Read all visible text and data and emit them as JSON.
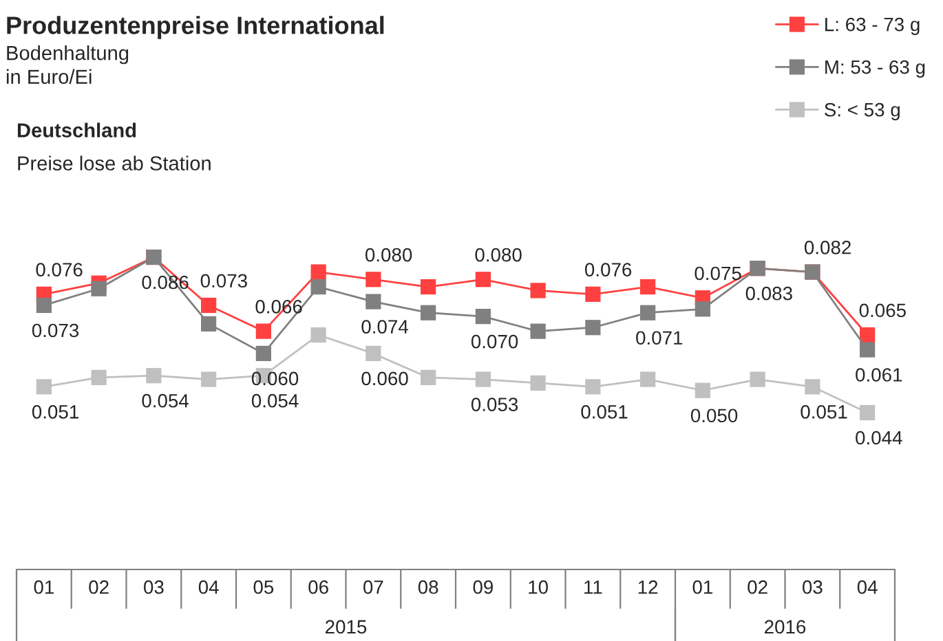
{
  "chart_data": {
    "type": "line",
    "title": "Produzentenpreise International",
    "subtitle": "Bodenhaltung\nin Euro/Ei",
    "annotations": [
      "Deutschland",
      "Preise lose ab Station",
      "2015",
      "2016"
    ],
    "categories": [
      "01",
      "02",
      "03",
      "04",
      "05",
      "06",
      "07",
      "08",
      "09",
      "10",
      "11",
      "12",
      "01",
      "02",
      "03",
      "04"
    ],
    "tick_labels": "x",
    "series": [
      {
        "name": "L: 63 - 73 g",
        "color": "#ff4040",
        "values": [
          0.076,
          0.079,
          0.086,
          0.073,
          0.066,
          0.082,
          0.08,
          0.078,
          0.08,
          0.077,
          0.076,
          0.078,
          0.075,
          0.083,
          0.082,
          0.065
        ],
        "value_labels": [
          "0.076",
          null,
          null,
          "0.073",
          "0.066",
          null,
          "0.080",
          null,
          "0.080",
          null,
          "0.076",
          null,
          "0.075",
          null,
          "0.082",
          "0.065"
        ]
      },
      {
        "name": "M: 53 - 63 g",
        "color": "#808080",
        "values": [
          0.073,
          0.0775,
          0.086,
          0.068,
          0.06,
          0.078,
          0.074,
          0.071,
          0.07,
          0.066,
          0.067,
          0.071,
          0.072,
          0.083,
          0.082,
          0.061
        ],
        "value_labels": [
          "0.073",
          null,
          "0.086",
          null,
          "0.060",
          null,
          "0.074",
          null,
          "0.070",
          null,
          null,
          "0.071",
          null,
          "0.083",
          null,
          "0.061"
        ]
      },
      {
        "name": "S: < 53 g",
        "color": "#c0c0c0",
        "values": [
          0.051,
          0.0535,
          0.054,
          0.053,
          0.054,
          0.065,
          0.06,
          0.0535,
          0.053,
          0.052,
          0.051,
          0.053,
          0.05,
          0.053,
          0.051,
          0.044
        ],
        "value_labels": [
          "0.051",
          null,
          "0.054",
          null,
          "0.054",
          null,
          "0.060",
          null,
          "0.053",
          null,
          "0.051",
          null,
          "0.050",
          null,
          "0.051",
          "0.044"
        ]
      }
    ],
    "marker": "square",
    "line_style": "solid",
    "legend": "top right"
  }
}
